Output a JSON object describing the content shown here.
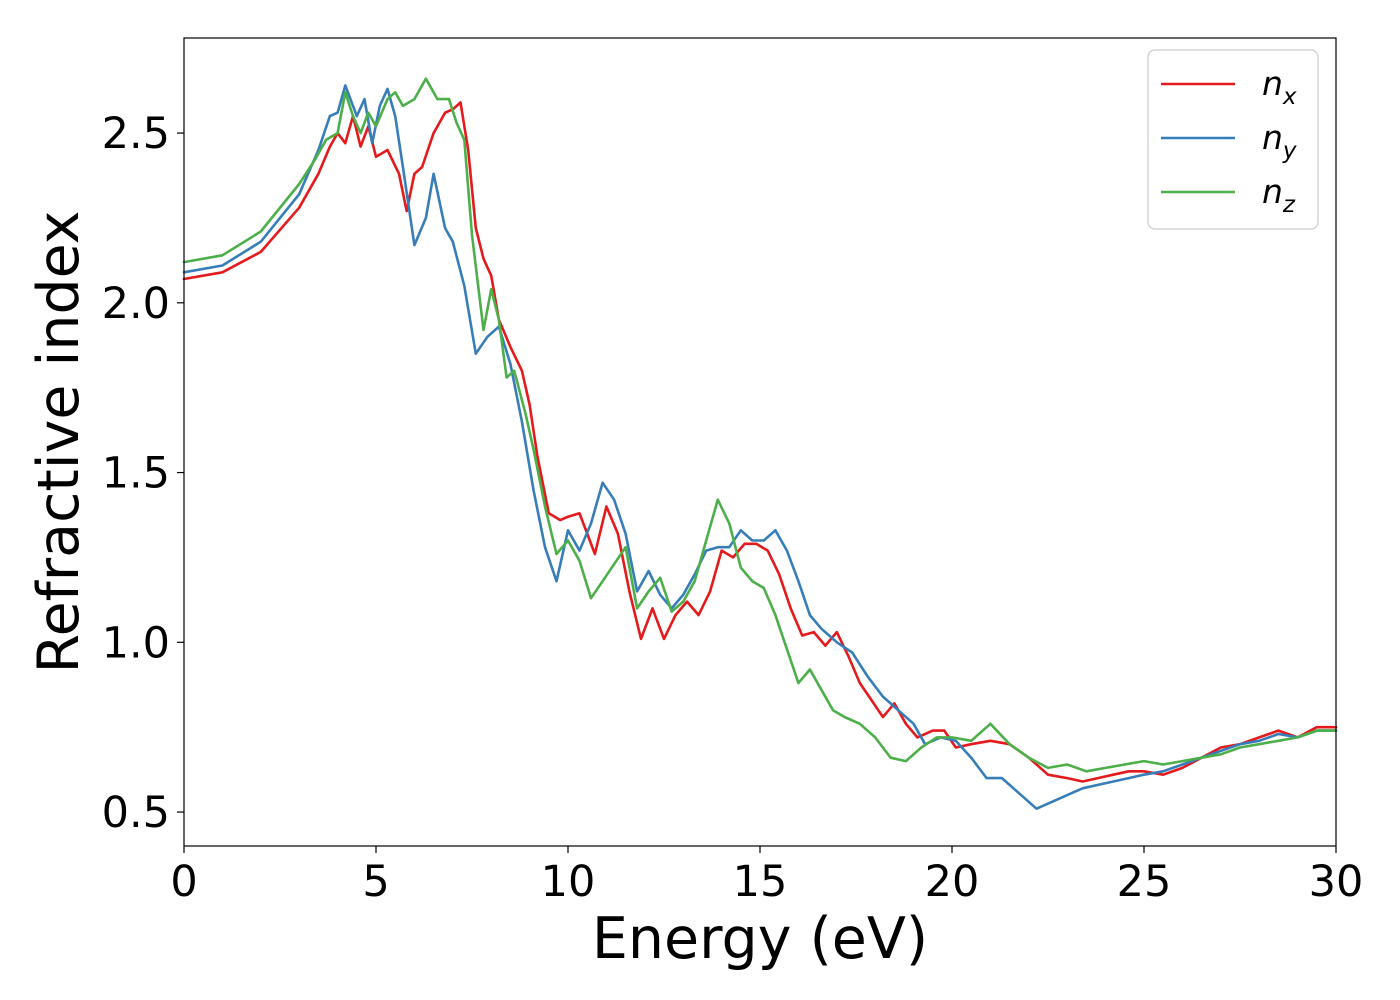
{
  "chart_data": {
    "type": "line",
    "xlabel": "Energy (eV)",
    "ylabel": "Refractive index",
    "xlim": [
      0,
      30
    ],
    "ylim": [
      0.4,
      2.78
    ],
    "xticks": [
      0,
      5,
      10,
      15,
      20,
      25,
      30
    ],
    "xtick_labels": [
      "0",
      "5",
      "10",
      "15",
      "20",
      "25",
      "30"
    ],
    "yticks": [
      0.5,
      1.0,
      1.5,
      2.0,
      2.5
    ],
    "ytick_labels": [
      "0.5",
      "1.0",
      "1.5",
      "2.0",
      "2.5"
    ],
    "grid": false,
    "legend_position": "top-right",
    "series": [
      {
        "name": "n_x",
        "label_main": "n",
        "label_sub": "x",
        "color": "#e41a1c",
        "points": [
          [
            0,
            2.07
          ],
          [
            1,
            2.09
          ],
          [
            2,
            2.15
          ],
          [
            3,
            2.28
          ],
          [
            3.5,
            2.38
          ],
          [
            3.8,
            2.46
          ],
          [
            4.0,
            2.5
          ],
          [
            4.2,
            2.47
          ],
          [
            4.4,
            2.55
          ],
          [
            4.6,
            2.46
          ],
          [
            4.8,
            2.52
          ],
          [
            5.0,
            2.43
          ],
          [
            5.3,
            2.45
          ],
          [
            5.6,
            2.38
          ],
          [
            5.8,
            2.27
          ],
          [
            6.0,
            2.38
          ],
          [
            6.2,
            2.4
          ],
          [
            6.5,
            2.5
          ],
          [
            6.8,
            2.56
          ],
          [
            7.0,
            2.57
          ],
          [
            7.2,
            2.59
          ],
          [
            7.4,
            2.45
          ],
          [
            7.6,
            2.22
          ],
          [
            7.8,
            2.13
          ],
          [
            8.0,
            2.08
          ],
          [
            8.2,
            1.95
          ],
          [
            8.5,
            1.87
          ],
          [
            8.8,
            1.8
          ],
          [
            9.0,
            1.7
          ],
          [
            9.2,
            1.55
          ],
          [
            9.5,
            1.38
          ],
          [
            9.8,
            1.36
          ],
          [
            10.0,
            1.37
          ],
          [
            10.3,
            1.38
          ],
          [
            10.7,
            1.26
          ],
          [
            11.0,
            1.4
          ],
          [
            11.3,
            1.32
          ],
          [
            11.6,
            1.15
          ],
          [
            11.9,
            1.01
          ],
          [
            12.2,
            1.1
          ],
          [
            12.5,
            1.01
          ],
          [
            12.8,
            1.08
          ],
          [
            13.1,
            1.12
          ],
          [
            13.4,
            1.08
          ],
          [
            13.7,
            1.15
          ],
          [
            14.0,
            1.27
          ],
          [
            14.3,
            1.25
          ],
          [
            14.6,
            1.29
          ],
          [
            14.9,
            1.29
          ],
          [
            15.2,
            1.27
          ],
          [
            15.5,
            1.2
          ],
          [
            15.8,
            1.1
          ],
          [
            16.1,
            1.02
          ],
          [
            16.4,
            1.03
          ],
          [
            16.7,
            0.99
          ],
          [
            17.0,
            1.03
          ],
          [
            17.3,
            0.96
          ],
          [
            17.6,
            0.88
          ],
          [
            17.9,
            0.83
          ],
          [
            18.2,
            0.78
          ],
          [
            18.5,
            0.82
          ],
          [
            18.8,
            0.76
          ],
          [
            19.1,
            0.72
          ],
          [
            19.5,
            0.74
          ],
          [
            19.8,
            0.74
          ],
          [
            20.1,
            0.69
          ],
          [
            20.5,
            0.7
          ],
          [
            21.0,
            0.71
          ],
          [
            21.5,
            0.7
          ],
          [
            22.0,
            0.66
          ],
          [
            22.5,
            0.61
          ],
          [
            23.0,
            0.6
          ],
          [
            23.4,
            0.59
          ],
          [
            23.8,
            0.6
          ],
          [
            24.2,
            0.61
          ],
          [
            24.6,
            0.62
          ],
          [
            25.0,
            0.62
          ],
          [
            25.5,
            0.61
          ],
          [
            26.0,
            0.63
          ],
          [
            26.5,
            0.66
          ],
          [
            27.0,
            0.69
          ],
          [
            27.5,
            0.7
          ],
          [
            28.0,
            0.72
          ],
          [
            28.5,
            0.74
          ],
          [
            29.0,
            0.72
          ],
          [
            29.5,
            0.75
          ],
          [
            30.0,
            0.75
          ]
        ]
      },
      {
        "name": "n_y",
        "label_main": "n",
        "label_sub": "y",
        "color": "#377eb8",
        "points": [
          [
            0,
            2.09
          ],
          [
            1,
            2.11
          ],
          [
            2,
            2.18
          ],
          [
            3,
            2.32
          ],
          [
            3.5,
            2.45
          ],
          [
            3.8,
            2.55
          ],
          [
            4.0,
            2.56
          ],
          [
            4.2,
            2.64
          ],
          [
            4.5,
            2.55
          ],
          [
            4.7,
            2.6
          ],
          [
            4.9,
            2.47
          ],
          [
            5.1,
            2.58
          ],
          [
            5.3,
            2.63
          ],
          [
            5.5,
            2.55
          ],
          [
            5.7,
            2.4
          ],
          [
            6.0,
            2.17
          ],
          [
            6.3,
            2.25
          ],
          [
            6.5,
            2.38
          ],
          [
            6.8,
            2.22
          ],
          [
            7.0,
            2.18
          ],
          [
            7.3,
            2.05
          ],
          [
            7.6,
            1.85
          ],
          [
            7.9,
            1.9
          ],
          [
            8.2,
            1.93
          ],
          [
            8.5,
            1.82
          ],
          [
            8.8,
            1.65
          ],
          [
            9.1,
            1.45
          ],
          [
            9.4,
            1.28
          ],
          [
            9.7,
            1.18
          ],
          [
            10.0,
            1.33
          ],
          [
            10.3,
            1.27
          ],
          [
            10.6,
            1.35
          ],
          [
            10.9,
            1.47
          ],
          [
            11.2,
            1.42
          ],
          [
            11.5,
            1.32
          ],
          [
            11.8,
            1.15
          ],
          [
            12.1,
            1.21
          ],
          [
            12.4,
            1.14
          ],
          [
            12.7,
            1.1
          ],
          [
            13.0,
            1.14
          ],
          [
            13.3,
            1.2
          ],
          [
            13.6,
            1.27
          ],
          [
            13.9,
            1.28
          ],
          [
            14.2,
            1.28
          ],
          [
            14.5,
            1.33
          ],
          [
            14.8,
            1.3
          ],
          [
            15.1,
            1.3
          ],
          [
            15.4,
            1.33
          ],
          [
            15.7,
            1.27
          ],
          [
            16.0,
            1.18
          ],
          [
            16.3,
            1.08
          ],
          [
            16.6,
            1.04
          ],
          [
            17.0,
            1.0
          ],
          [
            17.4,
            0.97
          ],
          [
            17.8,
            0.9
          ],
          [
            18.2,
            0.84
          ],
          [
            18.6,
            0.8
          ],
          [
            19.0,
            0.76
          ],
          [
            19.3,
            0.7
          ],
          [
            19.7,
            0.72
          ],
          [
            20.1,
            0.71
          ],
          [
            20.5,
            0.66
          ],
          [
            20.9,
            0.6
          ],
          [
            21.3,
            0.6
          ],
          [
            21.7,
            0.56
          ],
          [
            22.2,
            0.51
          ],
          [
            22.6,
            0.53
          ],
          [
            23.0,
            0.55
          ],
          [
            23.4,
            0.57
          ],
          [
            23.8,
            0.58
          ],
          [
            24.2,
            0.59
          ],
          [
            24.6,
            0.6
          ],
          [
            25.0,
            0.61
          ],
          [
            25.5,
            0.62
          ],
          [
            26.0,
            0.64
          ],
          [
            26.5,
            0.66
          ],
          [
            27.0,
            0.68
          ],
          [
            27.5,
            0.7
          ],
          [
            28.0,
            0.71
          ],
          [
            28.5,
            0.73
          ],
          [
            29.0,
            0.72
          ],
          [
            29.5,
            0.74
          ],
          [
            30.0,
            0.74
          ]
        ]
      },
      {
        "name": "n_z",
        "label_main": "n",
        "label_sub": "z",
        "color": "#4daf4a",
        "points": [
          [
            0,
            2.12
          ],
          [
            1,
            2.14
          ],
          [
            2,
            2.21
          ],
          [
            3,
            2.35
          ],
          [
            3.4,
            2.42
          ],
          [
            3.7,
            2.48
          ],
          [
            4.0,
            2.5
          ],
          [
            4.2,
            2.62
          ],
          [
            4.4,
            2.55
          ],
          [
            4.6,
            2.5
          ],
          [
            4.8,
            2.56
          ],
          [
            5.0,
            2.52
          ],
          [
            5.3,
            2.6
          ],
          [
            5.5,
            2.62
          ],
          [
            5.7,
            2.58
          ],
          [
            6.0,
            2.6
          ],
          [
            6.3,
            2.66
          ],
          [
            6.6,
            2.6
          ],
          [
            6.9,
            2.6
          ],
          [
            7.1,
            2.53
          ],
          [
            7.3,
            2.48
          ],
          [
            7.5,
            2.2
          ],
          [
            7.8,
            1.92
          ],
          [
            8.0,
            2.04
          ],
          [
            8.2,
            1.95
          ],
          [
            8.4,
            1.78
          ],
          [
            8.6,
            1.8
          ],
          [
            8.9,
            1.67
          ],
          [
            9.1,
            1.57
          ],
          [
            9.4,
            1.4
          ],
          [
            9.7,
            1.26
          ],
          [
            10.0,
            1.3
          ],
          [
            10.3,
            1.24
          ],
          [
            10.6,
            1.13
          ],
          [
            10.9,
            1.18
          ],
          [
            11.2,
            1.23
          ],
          [
            11.5,
            1.28
          ],
          [
            11.8,
            1.1
          ],
          [
            12.1,
            1.15
          ],
          [
            12.4,
            1.19
          ],
          [
            12.7,
            1.09
          ],
          [
            13.0,
            1.12
          ],
          [
            13.3,
            1.18
          ],
          [
            13.6,
            1.3
          ],
          [
            13.9,
            1.42
          ],
          [
            14.2,
            1.35
          ],
          [
            14.5,
            1.22
          ],
          [
            14.8,
            1.18
          ],
          [
            15.1,
            1.16
          ],
          [
            15.4,
            1.08
          ],
          [
            15.7,
            0.98
          ],
          [
            16.0,
            0.88
          ],
          [
            16.3,
            0.92
          ],
          [
            16.6,
            0.86
          ],
          [
            16.9,
            0.8
          ],
          [
            17.2,
            0.78
          ],
          [
            17.6,
            0.76
          ],
          [
            18.0,
            0.72
          ],
          [
            18.4,
            0.66
          ],
          [
            18.8,
            0.65
          ],
          [
            19.2,
            0.69
          ],
          [
            19.6,
            0.72
          ],
          [
            20.0,
            0.72
          ],
          [
            20.5,
            0.71
          ],
          [
            21.0,
            0.76
          ],
          [
            21.5,
            0.7
          ],
          [
            22.0,
            0.66
          ],
          [
            22.5,
            0.63
          ],
          [
            23.0,
            0.64
          ],
          [
            23.5,
            0.62
          ],
          [
            24.0,
            0.63
          ],
          [
            24.5,
            0.64
          ],
          [
            25.0,
            0.65
          ],
          [
            25.5,
            0.64
          ],
          [
            26.0,
            0.65
          ],
          [
            26.5,
            0.66
          ],
          [
            27.0,
            0.67
          ],
          [
            27.5,
            0.69
          ],
          [
            28.0,
            0.7
          ],
          [
            28.5,
            0.71
          ],
          [
            29.0,
            0.72
          ],
          [
            29.5,
            0.74
          ],
          [
            30.0,
            0.74
          ]
        ]
      }
    ]
  }
}
